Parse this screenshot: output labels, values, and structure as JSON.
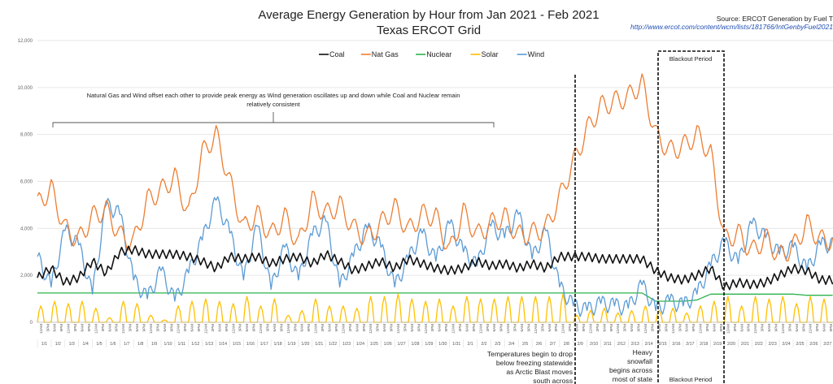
{
  "chart_data": {
    "type": "line",
    "title": "Average Energy Generation by Hour from Jan 2021 - Feb 2021",
    "subtitle": "Texas ERCOT Grid",
    "source_label": "Source: ERCOT Generation by Fuel T",
    "source_url": "http://www.ercot.com/content/wcm/lists/181766/IntGenbyFuel2021",
    "xlabel": "",
    "ylabel": "",
    "ylim": [
      0,
      12000
    ],
    "yticks": [
      0,
      2000,
      4000,
      6000,
      8000,
      10000,
      12000
    ],
    "ytick_labels": [
      "0",
      "2,000",
      "4,000",
      "6,000",
      "8,000",
      "10,000",
      "12,000"
    ],
    "grid": true,
    "legend_position": "top-center",
    "hour_labels": [
      "12AM",
      "3PM",
      "6AM",
      "9PM"
    ],
    "categories": [
      "1/1",
      "1/2",
      "1/3",
      "1/4",
      "1/5",
      "1/6",
      "1/7",
      "1/8",
      "1/9",
      "1/10",
      "1/11",
      "1/12",
      "1/13",
      "1/14",
      "1/15",
      "1/16",
      "1/17",
      "1/18",
      "1/19",
      "1/20",
      "1/21",
      "1/22",
      "1/23",
      "1/24",
      "1/25",
      "1/26",
      "1/27",
      "1/28",
      "1/29",
      "1/30",
      "1/31",
      "2/1",
      "2/2",
      "2/3",
      "2/4",
      "2/5",
      "2/6",
      "2/7",
      "2/8",
      "2/9",
      "2/10",
      "2/11",
      "2/12",
      "2/13",
      "2/14",
      "2/15",
      "2/16",
      "2/17",
      "2/18",
      "2/19",
      "2/20",
      "2/21",
      "2/22",
      "2/23",
      "2/24",
      "2/25",
      "2/26",
      "2/27"
    ],
    "series": [
      {
        "name": "Coal",
        "color": "#111111",
        "values": [
          1900,
          2300,
          1700,
          1900,
          2600,
          2100,
          3000,
          3100,
          2900,
          2900,
          2900,
          2800,
          2600,
          2300,
          2800,
          2700,
          2800,
          2500,
          2700,
          2800,
          2500,
          2900,
          2600,
          2200,
          2400,
          2600,
          2300,
          2700,
          2500,
          2300,
          2200,
          2300,
          2600,
          2400,
          2500,
          2300,
          2500,
          2300,
          2800,
          2800,
          2800,
          2700,
          2700,
          2700,
          2700,
          2200,
          1900,
          1800,
          2000,
          2300,
          1500,
          1700,
          1600,
          1700,
          2000,
          2300,
          2200,
          1800
        ]
      },
      {
        "name": "Nat Gas",
        "color": "#ed7d31",
        "values": [
          5000,
          5700,
          4000,
          3500,
          4500,
          4800,
          3700,
          3400,
          5200,
          5600,
          6200,
          4600,
          7200,
          8000,
          6000,
          4000,
          4600,
          3700,
          4500,
          3300,
          5200,
          4600,
          5000,
          4000,
          3600,
          4200,
          4900,
          3900,
          4600,
          4500,
          3000,
          4700,
          3700,
          4200,
          4500,
          3700,
          3800,
          4000,
          5300,
          6800,
          8200,
          9200,
          9400,
          9600,
          10200,
          8000,
          7300,
          7500,
          8000,
          7200,
          3500,
          3800,
          3000,
          3600,
          2800,
          3200,
          4200,
          3500
        ]
      },
      {
        "name": "Nuclear",
        "color": "#2bb34b",
        "values": [
          1250,
          1250,
          1250,
          1250,
          1250,
          1250,
          1250,
          1250,
          1250,
          1250,
          1250,
          1250,
          1250,
          1250,
          1250,
          1250,
          1250,
          1250,
          1250,
          1250,
          1250,
          1250,
          1250,
          1250,
          1250,
          1250,
          1250,
          1250,
          1250,
          1250,
          1250,
          1250,
          1250,
          1250,
          1250,
          1250,
          1250,
          1250,
          1250,
          1250,
          1250,
          1250,
          1250,
          1250,
          1250,
          900,
          900,
          900,
          950,
          1200,
          1200,
          1200,
          1200,
          1200,
          1200,
          1200,
          1150,
          1150
        ]
      },
      {
        "name": "Solar",
        "color": "#ffc000",
        "values": [
          700,
          900,
          800,
          900,
          600,
          200,
          900,
          800,
          300,
          100,
          700,
          900,
          1000,
          900,
          800,
          1100,
          700,
          1000,
          300,
          500,
          1000,
          700,
          700,
          600,
          1100,
          1100,
          1200,
          1000,
          900,
          1000,
          700,
          1100,
          1000,
          1000,
          1100,
          1100,
          1100,
          1100,
          1200,
          300,
          500,
          600,
          400,
          500,
          700,
          500,
          600,
          400,
          700,
          900,
          1100,
          700,
          1100,
          1000,
          1100,
          800,
          1100,
          1000
        ]
      },
      {
        "name": "Wind",
        "color": "#5b9bd5",
        "values": [
          2800,
          1500,
          3900,
          3300,
          1200,
          5000,
          4600,
          1800,
          1000,
          2200,
          900,
          2100,
          3500,
          5200,
          3800,
          1800,
          4100,
          1400,
          3200,
          1800,
          3700,
          4300,
          1500,
          2800,
          4000,
          3200,
          1500,
          2700,
          3800,
          2600,
          4200,
          3000,
          2400,
          4100,
          3600,
          4600,
          2700,
          3900,
          1500,
          700,
          500,
          800,
          700,
          600,
          1600,
          500,
          900,
          700,
          1200,
          2400,
          3400,
          2500,
          4200,
          3600,
          2900,
          3200,
          2200,
          3300
        ]
      }
    ],
    "annotations": [
      "Natural Gas and Wind offset each other to provide peak energy as Wind generation oscillates up and down while Coal and Nuclear remain relatively consistent",
      "Temperatures begin to drop below freezing statewide as Arctic Blast moves south across state",
      "Heavy snowfall begins across most of state",
      "Blackout Period",
      "Blackout Period"
    ]
  }
}
